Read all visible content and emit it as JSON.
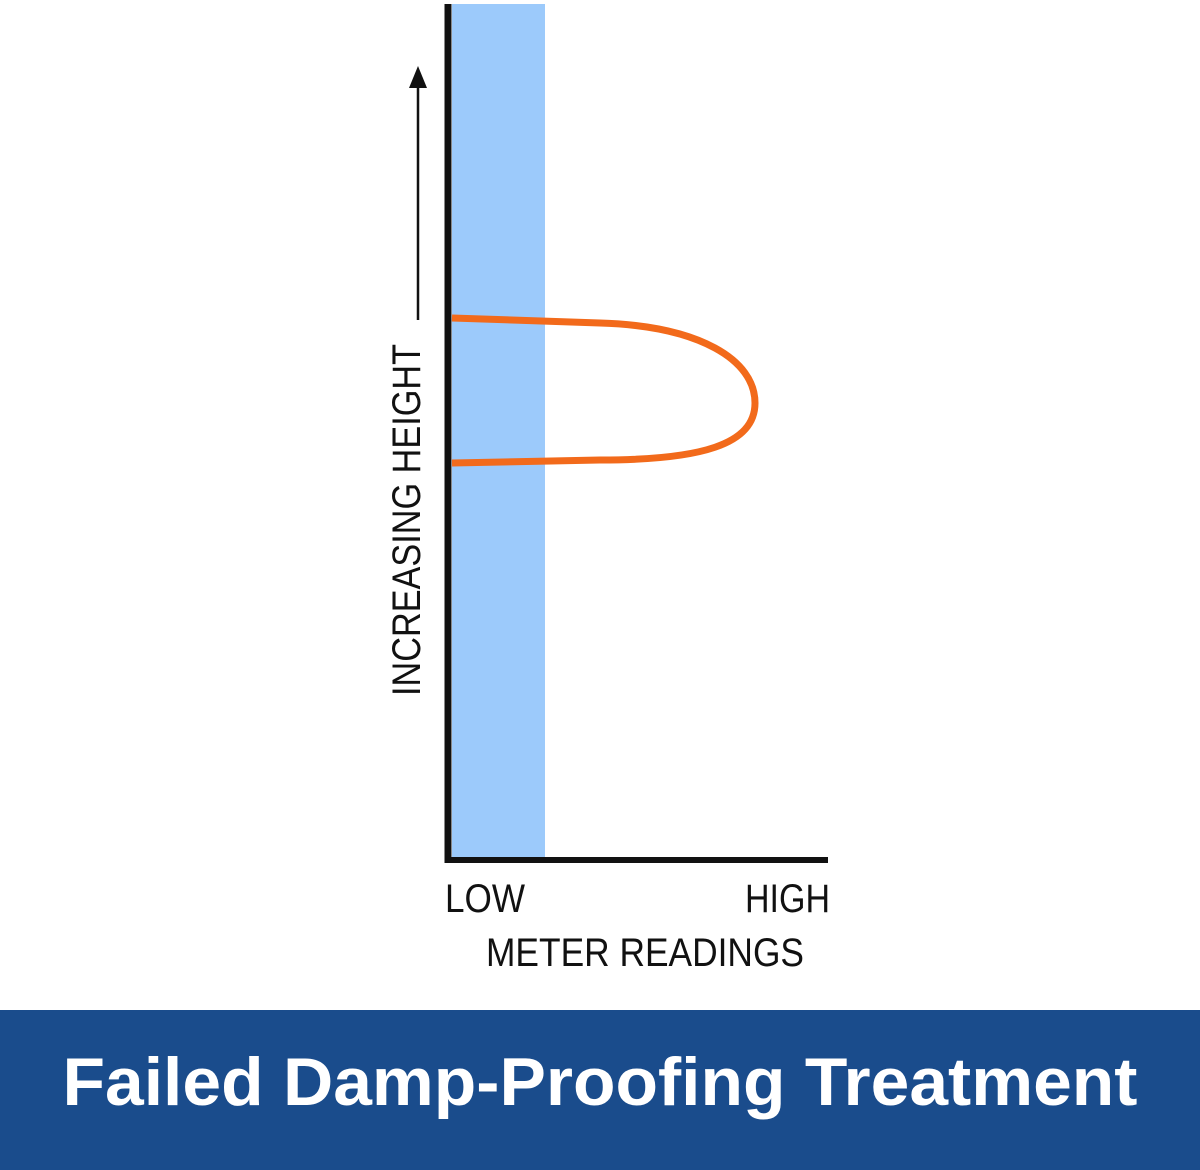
{
  "diagram": {
    "y_axis_label": "INCREASING HEIGHT",
    "x_axis_low": "LOW",
    "x_axis_high": "HIGH",
    "x_axis_label": "METER READINGS"
  },
  "banner": {
    "title": "Failed Damp-Proofing Treatment"
  }
}
